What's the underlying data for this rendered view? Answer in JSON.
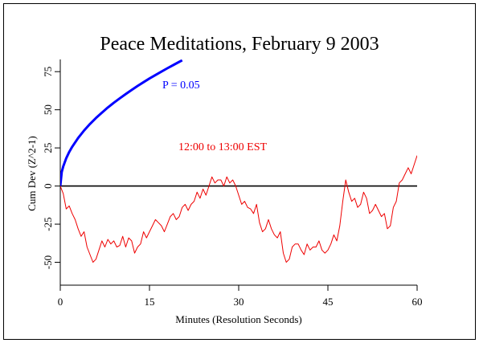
{
  "chart_data": {
    "type": "line",
    "title": "Peace Meditations, February 9 2003",
    "xlabel": "Minutes (Resolution Seconds)",
    "ylabel": "Cum Dev (Z^2-1)",
    "xlim": [
      0,
      60
    ],
    "ylim": [
      -65,
      83
    ],
    "x_ticks": [
      0,
      15,
      30,
      45,
      60
    ],
    "y_ticks": [
      -50,
      -25,
      0,
      25,
      50,
      75
    ],
    "grid": false,
    "annotations": [
      {
        "text": "P = 0.05",
        "color": "#0000ff"
      },
      {
        "text": "12:00 to 13:00 EST",
        "color": "#ee0000"
      }
    ],
    "series": [
      {
        "name": "P = 0.05",
        "color": "#0000ff",
        "kind": "probability-envelope",
        "x": [
          0,
          0.25,
          0.5,
          1,
          1.5,
          2,
          3,
          4,
          5,
          6,
          7,
          8,
          9,
          10,
          11,
          12,
          13,
          14,
          15,
          16,
          17,
          18,
          19,
          20,
          20.5
        ],
        "y": [
          0,
          9.1,
          12.9,
          18.2,
          22.3,
          25.7,
          31.5,
          36.4,
          40.7,
          44.6,
          48.1,
          51.5,
          54.6,
          57.5,
          60.3,
          63.0,
          65.6,
          68.1,
          70.5,
          72.8,
          75.0,
          77.2,
          79.3,
          81.4,
          82.4
        ]
      },
      {
        "name": "12:00 to 13:00 EST",
        "color": "#ee0000",
        "kind": "cumulative-deviation",
        "x": [
          0,
          0.5,
          1,
          1.5,
          2,
          2.5,
          3,
          3.5,
          4,
          4.5,
          5,
          5.5,
          6,
          6.5,
          7,
          7.5,
          8,
          8.5,
          9,
          9.5,
          10,
          10.5,
          11,
          11.5,
          12,
          12.5,
          13,
          13.5,
          14,
          14.5,
          15,
          15.5,
          16,
          16.5,
          17,
          17.5,
          18,
          18.5,
          19,
          19.5,
          20,
          20.5,
          21,
          21.5,
          22,
          22.5,
          23,
          23.5,
          24,
          24.5,
          25,
          25.5,
          26,
          26.5,
          27,
          27.5,
          28,
          28.5,
          29,
          29.5,
          30,
          30.5,
          31,
          31.5,
          32,
          32.5,
          33,
          33.5,
          34,
          34.5,
          35,
          35.5,
          36,
          36.5,
          37,
          37.5,
          38,
          38.5,
          39,
          39.5,
          40,
          40.5,
          41,
          41.5,
          42,
          42.5,
          43,
          43.5,
          44,
          44.5,
          45,
          45.5,
          46,
          46.5,
          47,
          47.5,
          48,
          48.5,
          49,
          49.5,
          50,
          50.5,
          51,
          51.5,
          52,
          52.5,
          53,
          53.5,
          54,
          54.5,
          55,
          55.5,
          56,
          56.5,
          57,
          57.5,
          58,
          58.5,
          59,
          59.5,
          60
        ],
        "y": [
          0,
          -5,
          -15,
          -13,
          -18,
          -22,
          -28,
          -33,
          -30,
          -40,
          -45,
          -50,
          -48,
          -42,
          -36,
          -40,
          -35,
          -38,
          -36,
          -40,
          -39,
          -33,
          -40,
          -34,
          -36,
          -44,
          -40,
          -38,
          -30,
          -34,
          -30,
          -26,
          -22,
          -24,
          -26,
          -30,
          -25,
          -20,
          -18,
          -22,
          -20,
          -14,
          -12,
          -16,
          -12,
          -10,
          -4,
          -8,
          -2,
          -6,
          0,
          6,
          2,
          4,
          4,
          0,
          6,
          2,
          4,
          0,
          -6,
          -12,
          -10,
          -14,
          -15,
          -18,
          -12,
          -24,
          -30,
          -28,
          -22,
          -28,
          -32,
          -34,
          -30,
          -44,
          -50,
          -48,
          -40,
          -38,
          -38,
          -42,
          -45,
          -38,
          -42,
          -40,
          -40,
          -36,
          -42,
          -44,
          -42,
          -38,
          -32,
          -36,
          -26,
          -10,
          4,
          -4,
          -10,
          -8,
          -14,
          -12,
          -4,
          -8,
          -18,
          -16,
          -12,
          -16,
          -20,
          -18,
          -28,
          -26,
          -14,
          -10,
          2,
          4,
          8,
          12,
          8,
          14,
          20
        ]
      }
    ]
  }
}
